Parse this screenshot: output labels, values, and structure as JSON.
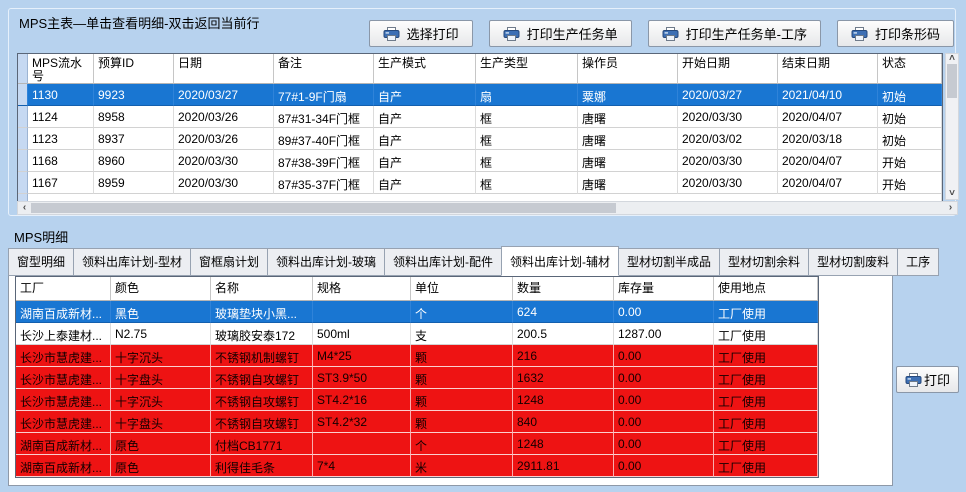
{
  "colors": {
    "window_bg": "#b7d2ee",
    "selection_blue": "#1976d2",
    "alert_red": "#ee1313"
  },
  "icons": {
    "scroll_up": "˄",
    "scroll_down": "˅",
    "scroll_left": "‹",
    "scroll_right": "›"
  },
  "master": {
    "title": "MPS主表—单击查看明细-双击返回当前行",
    "buttons": [
      {
        "label": "选择打印"
      },
      {
        "label": "打印生产任务单"
      },
      {
        "label": "打印生产任务单-工序"
      },
      {
        "label": "打印条形码"
      }
    ],
    "columns": [
      "MPS流水号",
      "预算ID",
      "日期",
      "备注",
      "生产模式",
      "生产类型",
      "操作员",
      "开始日期",
      "结束日期",
      "状态"
    ],
    "rows": [
      {
        "selected": true,
        "cells": [
          "1130",
          "9923",
          "2020/03/27",
          "77#1-9F门扇",
          "自产",
          "扇",
          "粟娜",
          "2020/03/27",
          "2021/04/10",
          "初始"
        ]
      },
      {
        "selected": false,
        "cells": [
          "1124",
          "8958",
          "2020/03/26",
          "87#31-34F门框",
          "自产",
          "框",
          "唐曙",
          "2020/03/30",
          "2020/04/07",
          "初始"
        ]
      },
      {
        "selected": false,
        "cells": [
          "1123",
          "8937",
          "2020/03/26",
          "89#37-40F门框",
          "自产",
          "框",
          "唐曙",
          "2020/03/02",
          "2020/03/18",
          "初始"
        ]
      },
      {
        "selected": false,
        "cells": [
          "1168",
          "8960",
          "2020/03/30",
          "87#38-39F门框",
          "自产",
          "框",
          "唐曙",
          "2020/03/30",
          "2020/04/07",
          "开始"
        ]
      },
      {
        "selected": false,
        "cells": [
          "1167",
          "8959",
          "2020/03/30",
          "87#35-37F门框",
          "自产",
          "框",
          "唐曙",
          "2020/03/30",
          "2020/04/07",
          "开始"
        ]
      }
    ]
  },
  "detail": {
    "label": "MPS明细",
    "active_tab": "领料出库计划-辅材",
    "tabs": [
      {
        "label": "窗型明细"
      },
      {
        "label": "领料出库计划-型材"
      },
      {
        "label": "窗框扇计划"
      },
      {
        "label": "领料出库计划-玻璃"
      },
      {
        "label": "领料出库计划-配件"
      },
      {
        "label": "领料出库计划-辅材"
      },
      {
        "label": "型材切割半成品"
      },
      {
        "label": "型材切割余料"
      },
      {
        "label": "型材切割废料"
      },
      {
        "label": "工序"
      }
    ],
    "columns": [
      "工厂",
      "颜色",
      "名称",
      "规格",
      "单位",
      "数量",
      "库存量",
      "使用地点"
    ],
    "rows": [
      {
        "state": "selected",
        "cells": [
          "湖南百成新材...",
          "黑色",
          "玻璃垫块小黑...",
          "",
          "个",
          "624",
          "0.00",
          "工厂使用"
        ]
      },
      {
        "state": "normal",
        "cells": [
          "长沙上泰建材...",
          "N2.75",
          "玻璃胶安泰172",
          "500ml",
          "支",
          "200.5",
          "1287.00",
          "工厂使用"
        ]
      },
      {
        "state": "alert",
        "cells": [
          "长沙市慧虎建...",
          "十字沉头",
          "不锈钢机制螺钉",
          "M4*25",
          "颗",
          "216",
          "0.00",
          "工厂使用"
        ]
      },
      {
        "state": "alert",
        "cells": [
          "长沙市慧虎建...",
          "十字盘头",
          "不锈钢自攻螺钉",
          "ST3.9*50",
          "颗",
          "1632",
          "0.00",
          "工厂使用"
        ]
      },
      {
        "state": "alert",
        "cells": [
          "长沙市慧虎建...",
          "十字沉头",
          "不锈钢自攻螺钉",
          "ST4.2*16",
          "颗",
          "1248",
          "0.00",
          "工厂使用"
        ]
      },
      {
        "state": "alert",
        "cells": [
          "长沙市慧虎建...",
          "十字盘头",
          "不锈钢自攻螺钉",
          "ST4.2*32",
          "颗",
          "840",
          "0.00",
          "工厂使用"
        ]
      },
      {
        "state": "alert",
        "cells": [
          "湖南百成新材...",
          "原色",
          "付档CB1771",
          "",
          "个",
          "1248",
          "0.00",
          "工厂使用"
        ]
      },
      {
        "state": "alert",
        "cells": [
          "湖南百成新材...",
          "原色",
          "利得佳毛条",
          "7*4",
          "米",
          "2911.81",
          "0.00",
          "工厂使用"
        ]
      }
    ],
    "print_button_label": "打印"
  }
}
